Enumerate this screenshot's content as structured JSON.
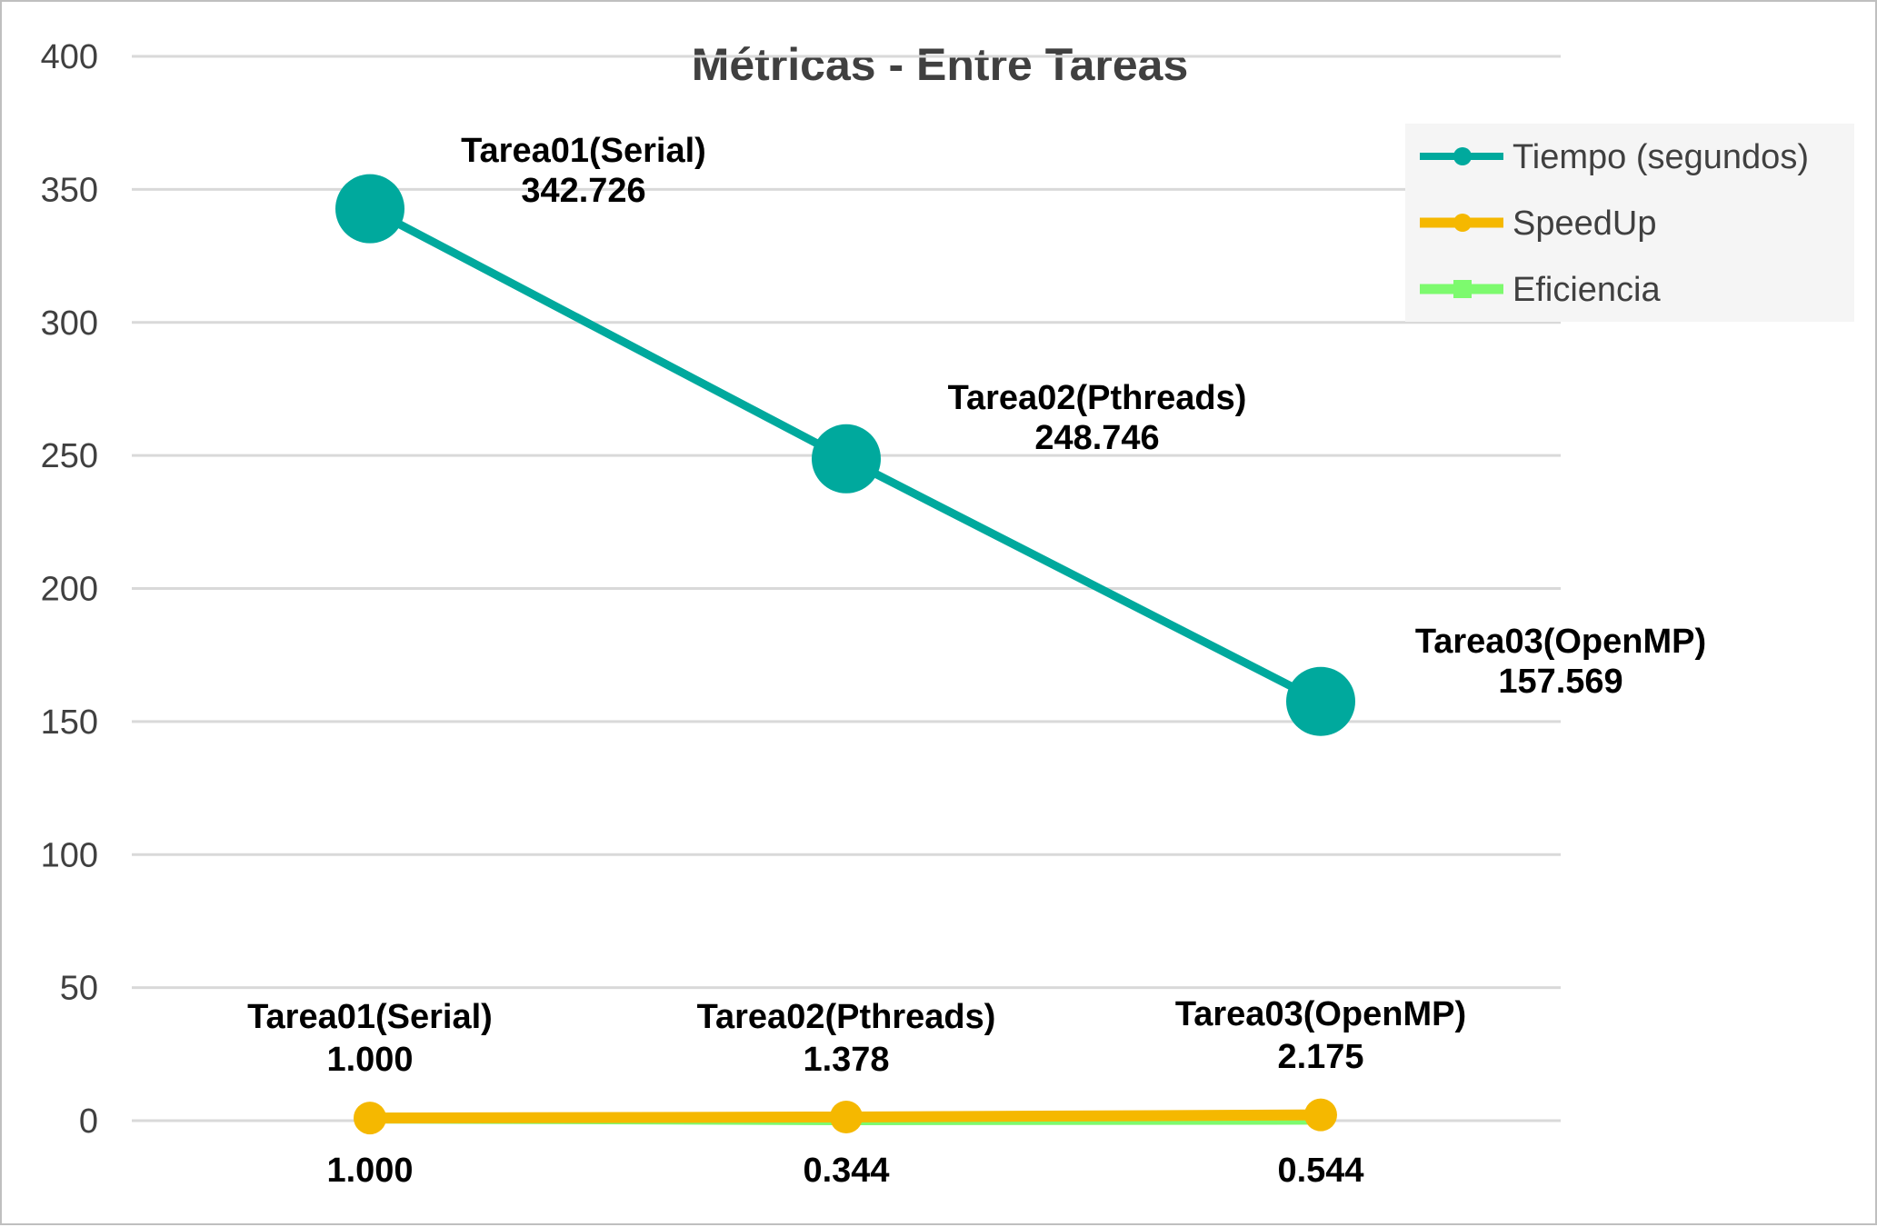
{
  "chart_data": {
    "type": "line",
    "title": "Métricas - Entre Tareas",
    "xlabel": "",
    "ylabel": "",
    "ylim": [
      0,
      400
    ],
    "yticks": [
      0,
      50,
      100,
      150,
      200,
      250,
      300,
      350,
      400
    ],
    "grid": true,
    "legend_position": "top-right",
    "categories": [
      "Tarea01(Serial)",
      "Tarea02(Pthreads)",
      "Tarea03(OpenMP)"
    ],
    "series": [
      {
        "name": "Tiempo (segundos)",
        "color": "#00a99d",
        "marker": "circle",
        "values": [
          342.726,
          248.746,
          157.569
        ],
        "labels": [
          "342.726",
          "248.746",
          "157.569"
        ]
      },
      {
        "name": "SpeedUp",
        "color": "#f5b800",
        "marker": "circle",
        "values": [
          1.0,
          1.378,
          2.175
        ],
        "labels": [
          "1.000",
          "1.378",
          "2.175"
        ]
      },
      {
        "name": "Eficiencia",
        "color": "#7dfa6e",
        "marker": "square",
        "values": [
          1.0,
          0.344,
          0.544
        ],
        "labels": [
          "1.000",
          "0.344",
          "0.544"
        ]
      }
    ]
  }
}
